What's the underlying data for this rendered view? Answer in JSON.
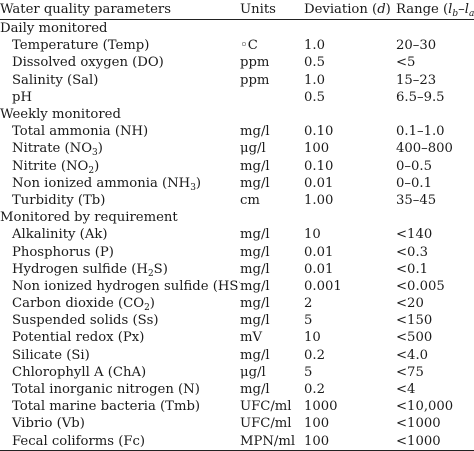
{
  "header": {
    "parameter": "Water quality parameters",
    "units": "Units",
    "deviation_label": "Deviation (",
    "deviation_symbol": "d",
    "deviation_close": ")",
    "range_label": "Range (",
    "range_symbol": "l",
    "range_sub_b": "b",
    "range_dash": "–",
    "range_sub_a": "a",
    "range_close": ")"
  },
  "sections": [
    {
      "title": "Daily monitored",
      "rows": [
        {
          "name": "Temperature (Temp)",
          "unit": "◦C",
          "deviation": "1.0",
          "range": "20–30"
        },
        {
          "name": "Dissolved oxygen (DO)",
          "unit": "ppm",
          "deviation": "0.5",
          "range": "<5"
        },
        {
          "name": "Salinity (Sal)",
          "unit": "ppm",
          "deviation": "1.0",
          "range": "15–23"
        },
        {
          "name": "pH",
          "unit": "",
          "deviation": "0.5",
          "range": "6.5–9.5"
        }
      ]
    },
    {
      "title": "Weekly monitored",
      "rows": [
        {
          "name": "Total ammonia (NH)",
          "unit": "mg/l",
          "deviation": "0.10",
          "range": "0.1–1.0"
        },
        {
          "name": "Nitrate (NO",
          "sub": "3",
          "name_tail": ")",
          "unit": "μg/l",
          "deviation": "100",
          "range": "400–800"
        },
        {
          "name": "Nitrite (NO",
          "sub": "2",
          "name_tail": ")",
          "unit": "mg/l",
          "deviation": "0.10",
          "range": "0–0.5"
        },
        {
          "name": "Non ionized ammonia (NH",
          "sub": "3",
          "name_tail": ")",
          "unit": "mg/l",
          "deviation": "0.01",
          "range": "0–0.1"
        },
        {
          "name": "Turbidity (Tb)",
          "unit": "cm",
          "deviation": "1.00",
          "range": "35–45"
        }
      ]
    },
    {
      "title": "Monitored by requirement",
      "rows": [
        {
          "name": "Alkalinity (Ak)",
          "unit": "mg/l",
          "deviation": "10",
          "range": "<140"
        },
        {
          "name": "Phosphorus (P)",
          "unit": "mg/l",
          "deviation": "0.01",
          "range": "<0.3"
        },
        {
          "name": "Hydrogen sulfide (H",
          "sub": "2",
          "name_tail": "S)",
          "unit": "mg/l",
          "deviation": "0.01",
          "range": "<0.1"
        },
        {
          "name": "Non ionized hydrogen sulfide (HS",
          "sup": "−",
          "name_tail": ")",
          "unit": "mg/l",
          "deviation": "0.001",
          "range": "<0.005"
        },
        {
          "name": "Carbon dioxide (CO",
          "sub": "2",
          "name_tail": ")",
          "unit": "mg/l",
          "deviation": "2",
          "range": "<20"
        },
        {
          "name": "Suspended solids (Ss)",
          "unit": "mg/l",
          "deviation": "5",
          "range": "<150"
        },
        {
          "name": "Potential redox (Px)",
          "unit": "mV",
          "deviation": "10",
          "range": "<500"
        },
        {
          "name": "Silicate (Si)",
          "unit": "mg/l",
          "deviation": "0.2",
          "range": "<4.0"
        },
        {
          "name": "Chlorophyll A (ChA)",
          "unit": "μg/l",
          "deviation": "5",
          "range": "<75"
        },
        {
          "name": "Total inorganic nitrogen (N)",
          "unit": "mg/l",
          "deviation": "0.2",
          "range": "<4"
        },
        {
          "name": "Total marine bacteria (Tmb)",
          "unit": "UFC/ml",
          "deviation": "1000",
          "range": "<10,000"
        },
        {
          "name": "Vibrio (Vb)",
          "unit": "UFC/ml",
          "deviation": "100",
          "range": "<1000"
        },
        {
          "name": "Fecal coliforms (Fc)",
          "unit": "MPN/ml",
          "deviation": "100",
          "range": "<1000"
        }
      ]
    }
  ]
}
